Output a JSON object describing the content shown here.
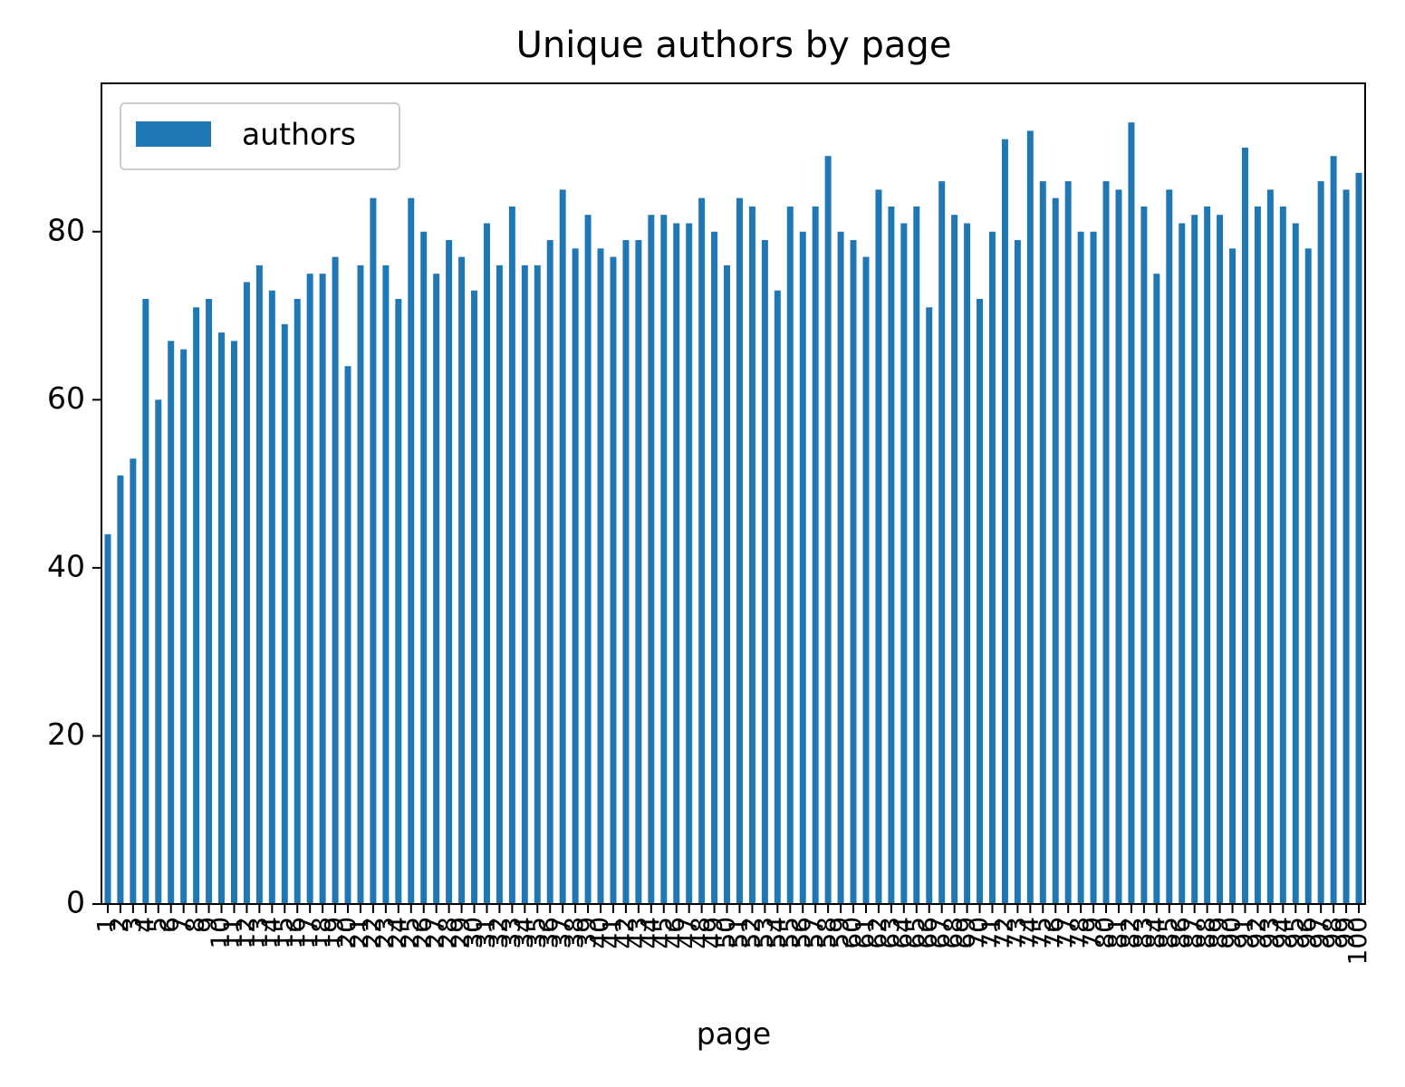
{
  "chart_data": {
    "type": "bar",
    "title": "Unique authors by page",
    "xlabel": "page",
    "categories": [
      "1",
      "2",
      "3",
      "4",
      "5",
      "6",
      "7",
      "8",
      "9",
      "10",
      "11",
      "12",
      "13",
      "14",
      "15",
      "16",
      "17",
      "18",
      "19",
      "20",
      "21",
      "22",
      "23",
      "24",
      "25",
      "26",
      "27",
      "28",
      "29",
      "30",
      "31",
      "32",
      "33",
      "34",
      "35",
      "36",
      "37",
      "38",
      "39",
      "40",
      "41",
      "42",
      "43",
      "44",
      "45",
      "46",
      "47",
      "48",
      "49",
      "50",
      "51",
      "52",
      "53",
      "54",
      "55",
      "56",
      "57",
      "58",
      "59",
      "60",
      "61",
      "62",
      "63",
      "64",
      "65",
      "66",
      "67",
      "68",
      "69",
      "70",
      "71",
      "72",
      "73",
      "74",
      "75",
      "76",
      "77",
      "78",
      "79",
      "80",
      "81",
      "82",
      "83",
      "84",
      "85",
      "86",
      "87",
      "88",
      "89",
      "90",
      "91",
      "92",
      "93",
      "94",
      "95",
      "96",
      "97",
      "98",
      "99",
      "100"
    ],
    "series": [
      {
        "name": "authors",
        "color": "#1f77b4",
        "values": [
          44,
          51,
          53,
          72,
          60,
          67,
          66,
          71,
          72,
          68,
          67,
          74,
          76,
          73,
          69,
          72,
          75,
          75,
          77,
          64,
          76,
          84,
          76,
          72,
          84,
          80,
          75,
          79,
          77,
          73,
          81,
          76,
          83,
          76,
          76,
          79,
          85,
          78,
          82,
          78,
          77,
          79,
          79,
          82,
          82,
          81,
          81,
          84,
          80,
          76,
          84,
          83,
          79,
          73,
          83,
          80,
          83,
          89,
          80,
          79,
          77,
          85,
          83,
          81,
          83,
          71,
          86,
          82,
          81,
          72,
          80,
          91,
          79,
          92,
          86,
          84,
          86,
          80,
          80,
          86,
          85,
          93,
          83,
          75,
          85,
          81,
          82,
          83,
          82,
          78,
          90,
          83,
          85,
          83,
          81,
          78,
          86,
          89,
          85,
          87
        ]
      }
    ],
    "ylim": [
      0,
      97.65
    ],
    "yticks": [
      0,
      20,
      40,
      60,
      80
    ],
    "grid": false,
    "legend": "upper left"
  }
}
